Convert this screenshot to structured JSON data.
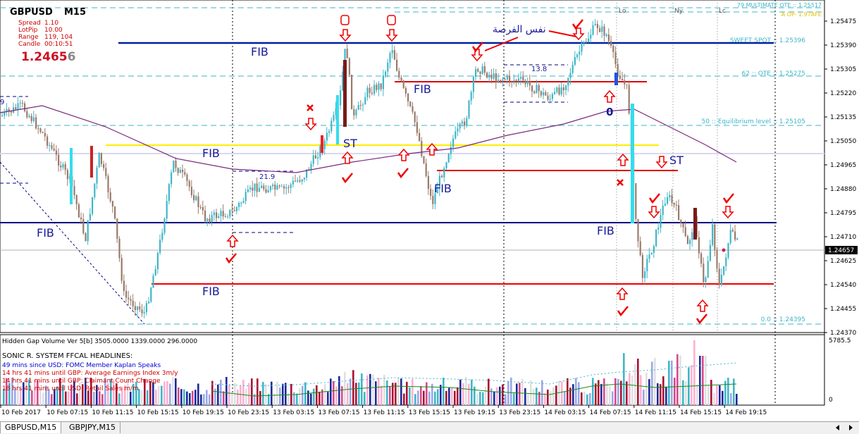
{
  "header": {
    "symbol": "GBPUSD",
    "timeframe": "M15",
    "info_labels": [
      "Spread",
      "LotPip",
      "Range",
      "Candle"
    ],
    "info_values": [
      "1.10",
      "10.00",
      "119, 104",
      "00:10:51"
    ],
    "bid_main": "1.2465",
    "bid_last": "6"
  },
  "price_axis": {
    "ticks": [
      "1.25475",
      "1.25390",
      "1.25305",
      "1.25220",
      "1.25135",
      "1.25050",
      "1.24965",
      "1.24880",
      "1.24795",
      "1.24710",
      "1.24625",
      "1.24540",
      "1.24455",
      "1.24370"
    ],
    "current_price": "1.24657"
  },
  "levels": {
    "ote79": "79  MULTIMATE OTE :: 1.25517",
    "opr": "A OP- 1.97AFE",
    "sweet": "SWEET SPOT :: 1.25396",
    "ote62": "62 :: OTE :: 1.25275",
    "eq50": "50 ::  Equilibrium level :: 1.25105",
    "zero": "0.0 :: 1.24395"
  },
  "sessions": [
    "Lo",
    "Ny",
    "Lc"
  ],
  "annotations": {
    "fib": "FIB",
    "st": "ST",
    "arabic": "نفس الفرصة",
    "n138": "13.8",
    "n219": "21.9",
    "nine": "9",
    "zero_label": "0"
  },
  "indicator": {
    "title": "Hidden Gap Volume Ver 5[b] 3505.0000 1339.0000 296.0000",
    "headlines_title": "SONIC R. SYSTEM  FFCAL HEADLINES:",
    "headlines": [
      {
        "text": "49 mins since USD: FOMC Member Kaplan Speaks",
        "color": "#0000cc"
      },
      {
        "text": "14 hrs 41 mins until GBP: Average Earnings Index 3m/y",
        "color": "#cc0000"
      },
      {
        "text": "14 hrs 41 mins until GBP: Claimant Count Change",
        "color": "#cc0000"
      },
      {
        "text": "18 hrs 41 mins until USD: Retail Sales m/m",
        "color": "#cc0000"
      }
    ],
    "axis_top": "5785.5",
    "axis_bottom": "0"
  },
  "time_axis": [
    "10 Feb 2017",
    "10 Feb 07:15",
    "10 Feb 11:15",
    "10 Feb 15:15",
    "10 Feb 19:15",
    "10 Feb 23:15",
    "13 Feb 03:15",
    "13 Feb 07:15",
    "13 Feb 11:15",
    "13 Feb 15:15",
    "13 Feb 19:15",
    "13 Feb 23:15",
    "14 Feb 03:15",
    "14 Feb 07:15",
    "14 Feb 11:15",
    "14 Feb 15:15",
    "14 Feb 19:15"
  ],
  "tabs": [
    "GBPUSD,M15",
    "GBPJPY,M15"
  ]
}
